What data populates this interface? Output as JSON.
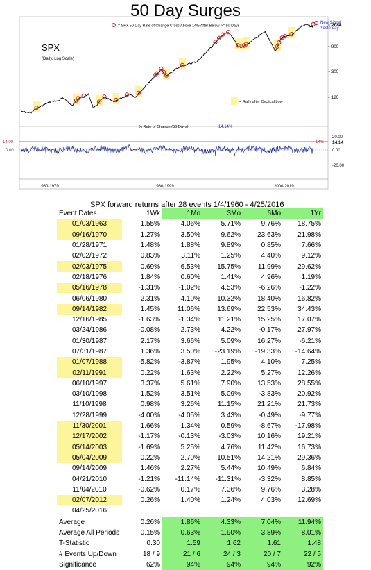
{
  "chart_data": [
    {
      "type": "line",
      "title": "50 Day Surges",
      "series_label": "SPX",
      "subtitle": "(Daily, Log Scale)",
      "legend_marker": "= SPX 50 Day Rate of Change Cross Above 14% After Below >= 50 Days",
      "legend_rally": "= Rally after Cyclical Low",
      "annotation": "New Signal Yesterday",
      "y_ticks": [
        "2088",
        "900",
        "300",
        "120"
      ],
      "log_scale": true,
      "colors": {
        "line": "#000000",
        "marker": "#d6282f",
        "highlight": "#fdf59a",
        "annotation": "#1a2fb0"
      }
    },
    {
      "type": "line",
      "title": "% Rate of Change (50 Days)",
      "current_value": "14.14%",
      "threshold_label_left": "14.00",
      "threshold_label_right": "14%",
      "zero_label_left": "0.00",
      "y_ticks": [
        "20.00",
        "14.14",
        "0.00",
        "-20.00"
      ],
      "x_labels": [
        "1960-1979",
        "1980-1999",
        "2000-2019"
      ],
      "colors": {
        "line": "#1f2fa8",
        "threshold": "#d6282f"
      }
    }
  ],
  "table": {
    "title": "SPX forward returns after 28 events 1/4/1960 - 4/25/2016",
    "headers": [
      "Event Dates",
      "1Wk",
      "1Mo",
      "3Mo",
      "6Mo",
      "1Yr"
    ],
    "rows": [
      {
        "date": "01/03/1963",
        "hl": true,
        "v": [
          "1.55%",
          "4.06%",
          "5.71%",
          "9.76%",
          "18.75%"
        ]
      },
      {
        "date": "09/16/1970",
        "hl": true,
        "v": [
          "1.27%",
          "3.50%",
          "9.62%",
          "23.63%",
          "21.98%"
        ]
      },
      {
        "date": "01/28/1971",
        "hl": false,
        "v": [
          "1.48%",
          "1.88%",
          "9.89%",
          "0.85%",
          "7.66%"
        ]
      },
      {
        "date": "02/02/1972",
        "hl": false,
        "v": [
          "0.83%",
          "3.11%",
          "1.25%",
          "4.40%",
          "9.12%"
        ]
      },
      {
        "date": "02/03/1975",
        "hl": true,
        "v": [
          "0.69%",
          "6.53%",
          "15.75%",
          "11.99%",
          "29.62%"
        ]
      },
      {
        "date": "02/18/1976",
        "hl": false,
        "v": [
          "1.84%",
          "0.60%",
          "1.41%",
          "4.96%",
          "1.19%"
        ]
      },
      {
        "date": "05/16/1978",
        "hl": true,
        "v": [
          "-1.31%",
          "-1.02%",
          "4.53%",
          "-6.26%",
          "-1.22%"
        ]
      },
      {
        "date": "06/06/1980",
        "hl": false,
        "v": [
          "2.31%",
          "4.10%",
          "10.32%",
          "18.40%",
          "16.82%"
        ]
      },
      {
        "date": "09/14/1982",
        "hl": true,
        "v": [
          "1.45%",
          "11.06%",
          "13.69%",
          "22.53%",
          "34.43%"
        ]
      },
      {
        "date": "12/16/1985",
        "hl": false,
        "v": [
          "-1.63%",
          "-1.34%",
          "11.21%",
          "15.25%",
          "17.07%"
        ]
      },
      {
        "date": "03/24/1986",
        "hl": false,
        "v": [
          "-0.08%",
          "2.73%",
          "4.22%",
          "-0.17%",
          "27.97%"
        ]
      },
      {
        "date": "01/30/1987",
        "hl": false,
        "v": [
          "2.17%",
          "3.66%",
          "5.09%",
          "16.27%",
          "-6.21%"
        ]
      },
      {
        "date": "07/31/1987",
        "hl": false,
        "v": [
          "1.36%",
          "3.50%",
          "-23.19%",
          "-19.33%",
          "-14.64%"
        ]
      },
      {
        "date": "01/07/1988",
        "hl": true,
        "v": [
          "-5.82%",
          "-3.87%",
          "1.95%",
          "4.10%",
          "7.25%"
        ]
      },
      {
        "date": "02/11/1991",
        "hl": true,
        "v": [
          "0.22%",
          "1.63%",
          "2.22%",
          "5.27%",
          "12.26%"
        ]
      },
      {
        "date": "06/10/1997",
        "hl": false,
        "v": [
          "3.37%",
          "5.61%",
          "7.90%",
          "13.53%",
          "28.55%"
        ]
      },
      {
        "date": "03/10/1998",
        "hl": false,
        "v": [
          "1.52%",
          "3.51%",
          "5.09%",
          "-3.83%",
          "20.92%"
        ]
      },
      {
        "date": "11/10/1998",
        "hl": false,
        "v": [
          "0.98%",
          "3.26%",
          "11.15%",
          "21.21%",
          "21.73%"
        ]
      },
      {
        "date": "12/28/1999",
        "hl": false,
        "v": [
          "-4.00%",
          "-4.05%",
          "3.43%",
          "-0.49%",
          "-9.77%"
        ]
      },
      {
        "date": "11/30/2001",
        "hl": true,
        "v": [
          "1.66%",
          "1.34%",
          "0.59%",
          "-8.67%",
          "-17.98%"
        ]
      },
      {
        "date": "12/17/2002",
        "hl": true,
        "v": [
          "-1.17%",
          "-0.13%",
          "-3.03%",
          "10.16%",
          "19.21%"
        ]
      },
      {
        "date": "05/14/2003",
        "hl": true,
        "v": [
          "-1.69%",
          "5.25%",
          "4.76%",
          "11.42%",
          "16.73%"
        ]
      },
      {
        "date": "05/04/2009",
        "hl": true,
        "v": [
          "0.22%",
          "2.70%",
          "10.51%",
          "14.21%",
          "29.36%"
        ]
      },
      {
        "date": "09/14/2009",
        "hl": false,
        "v": [
          "1.46%",
          "2.27%",
          "5.44%",
          "10.49%",
          "6.84%"
        ]
      },
      {
        "date": "04/21/2010",
        "hl": false,
        "v": [
          "-1.21%",
          "-11.14%",
          "-11.31%",
          "-3.32%",
          "8.85%"
        ]
      },
      {
        "date": "11/04/2010",
        "hl": false,
        "v": [
          "-0.62%",
          "0.17%",
          "7.36%",
          "9.76%",
          "3.28%"
        ]
      },
      {
        "date": "02/07/2012",
        "hl": true,
        "v": [
          "0.26%",
          "1.40%",
          "1.24%",
          "4.03%",
          "12.69%"
        ]
      },
      {
        "date": "04/25/2016",
        "hl": false,
        "v": [
          "",
          "",
          "",
          "",
          ""
        ]
      }
    ],
    "summary": [
      {
        "label": "Average",
        "v": [
          "0.26%",
          "1.86%",
          "4.33%",
          "7.04%",
          "11.94%"
        ]
      },
      {
        "label": "Average All Periods",
        "v": [
          "0.15%",
          "0.63%",
          "1.90%",
          "3.89%",
          "8.01%"
        ]
      },
      {
        "label": "T-Statistic",
        "v": [
          "0.30",
          "1.59",
          "1.62",
          "1.61",
          "1.48"
        ]
      },
      {
        "label": "# Events Up/Down",
        "v": [
          "18 / 9",
          "21 / 6",
          "24 / 3",
          "20 / 7",
          "22 / 5"
        ]
      },
      {
        "label": "Significance",
        "v": [
          "62%",
          "94%",
          "94%",
          "94%",
          "92%"
        ]
      }
    ]
  }
}
